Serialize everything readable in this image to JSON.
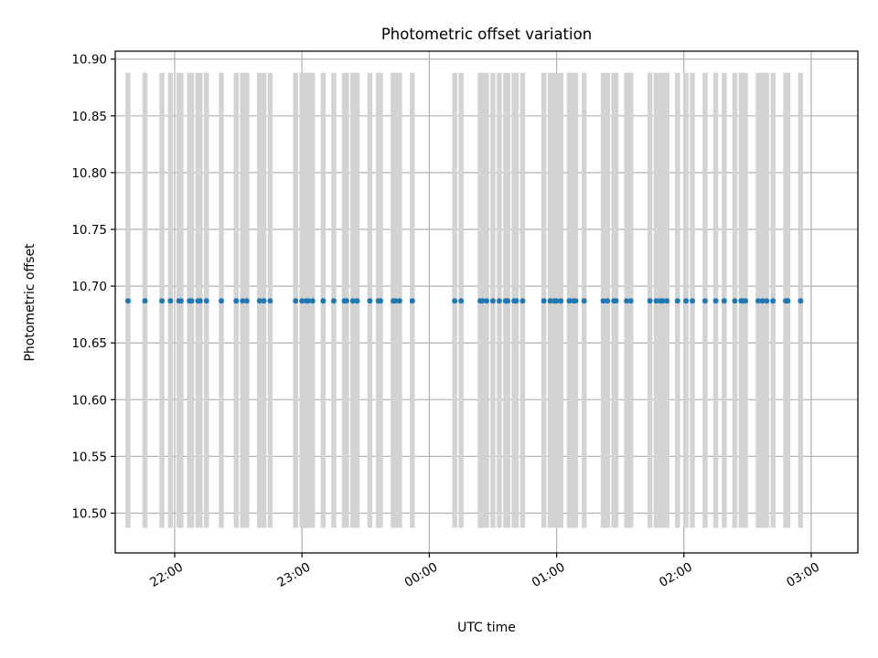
{
  "chart_data": {
    "type": "scatter",
    "title": "Photometric offset variation",
    "xlabel": "UTC time",
    "ylabel": "Photometric offset",
    "x_axis": {
      "type": "time",
      "start": "21:32",
      "end": "03:22",
      "ticks": [
        "22:00",
        "23:00",
        "00:00",
        "01:00",
        "02:00",
        "03:00"
      ]
    },
    "y_axis": {
      "range": [
        10.465,
        10.907
      ],
      "ticks": [
        "10.50",
        "10.55",
        "10.60",
        "10.65",
        "10.70",
        "10.75",
        "10.80",
        "10.85",
        "10.90"
      ]
    },
    "grid": true,
    "error_bar_color": "#d3d3d3",
    "point_color": "#1f77b4",
    "series": [
      {
        "error_low": 10.487,
        "error_high": 10.888,
        "points": [
          {
            "x": "21:38",
            "y": 10.687
          },
          {
            "x": "21:46",
            "y": 10.687
          },
          {
            "x": "21:54",
            "y": 10.687
          },
          {
            "x": "21:58",
            "y": 10.687
          },
          {
            "x": "22:02",
            "y": 10.687
          },
          {
            "x": "22:03",
            "y": 10.687
          },
          {
            "x": "22:07",
            "y": 10.687
          },
          {
            "x": "22:08",
            "y": 10.687
          },
          {
            "x": "22:11",
            "y": 10.687
          },
          {
            "x": "22:12",
            "y": 10.687
          },
          {
            "x": "22:15",
            "y": 10.687
          },
          {
            "x": "22:22",
            "y": 10.687
          },
          {
            "x": "22:29",
            "y": 10.687
          },
          {
            "x": "22:32",
            "y": 10.687
          },
          {
            "x": "22:34",
            "y": 10.687
          },
          {
            "x": "22:40",
            "y": 10.687
          },
          {
            "x": "22:42",
            "y": 10.687
          },
          {
            "x": "22:45",
            "y": 10.687
          },
          {
            "x": "22:57",
            "y": 10.687
          },
          {
            "x": "23:00",
            "y": 10.687
          },
          {
            "x": "23:02",
            "y": 10.687
          },
          {
            "x": "23:03",
            "y": 10.687
          },
          {
            "x": "23:05",
            "y": 10.687
          },
          {
            "x": "23:10",
            "y": 10.687
          },
          {
            "x": "23:15",
            "y": 10.687
          },
          {
            "x": "23:20",
            "y": 10.687
          },
          {
            "x": "23:21",
            "y": 10.687
          },
          {
            "x": "23:24",
            "y": 10.687
          },
          {
            "x": "23:26",
            "y": 10.687
          },
          {
            "x": "23:32",
            "y": 10.687
          },
          {
            "x": "23:36",
            "y": 10.687
          },
          {
            "x": "23:37",
            "y": 10.687
          },
          {
            "x": "23:43",
            "y": 10.687
          },
          {
            "x": "23:44",
            "y": 10.687
          },
          {
            "x": "23:46",
            "y": 10.687
          },
          {
            "x": "23:52",
            "y": 10.687
          },
          {
            "x": "00:12",
            "y": 10.687
          },
          {
            "x": "00:15",
            "y": 10.687
          },
          {
            "x": "00:24",
            "y": 10.687
          },
          {
            "x": "00:25",
            "y": 10.687
          },
          {
            "x": "00:27",
            "y": 10.687
          },
          {
            "x": "00:30",
            "y": 10.687
          },
          {
            "x": "00:33",
            "y": 10.687
          },
          {
            "x": "00:36",
            "y": 10.687
          },
          {
            "x": "00:37",
            "y": 10.687
          },
          {
            "x": "00:40",
            "y": 10.687
          },
          {
            "x": "00:41",
            "y": 10.687
          },
          {
            "x": "00:44",
            "y": 10.687
          },
          {
            "x": "00:54",
            "y": 10.687
          },
          {
            "x": "00:57",
            "y": 10.687
          },
          {
            "x": "00:59",
            "y": 10.687
          },
          {
            "x": "01:00",
            "y": 10.687
          },
          {
            "x": "01:02",
            "y": 10.687
          },
          {
            "x": "01:06",
            "y": 10.687
          },
          {
            "x": "01:08",
            "y": 10.687
          },
          {
            "x": "01:09",
            "y": 10.687
          },
          {
            "x": "01:13",
            "y": 10.687
          },
          {
            "x": "01:22",
            "y": 10.687
          },
          {
            "x": "01:24",
            "y": 10.687
          },
          {
            "x": "01:27",
            "y": 10.687
          },
          {
            "x": "01:28",
            "y": 10.687
          },
          {
            "x": "01:33",
            "y": 10.687
          },
          {
            "x": "01:35",
            "y": 10.687
          },
          {
            "x": "01:44",
            "y": 10.687
          },
          {
            "x": "01:47",
            "y": 10.687
          },
          {
            "x": "01:49",
            "y": 10.687
          },
          {
            "x": "01:50",
            "y": 10.687
          },
          {
            "x": "01:52",
            "y": 10.687
          },
          {
            "x": "01:57",
            "y": 10.687
          },
          {
            "x": "02:01",
            "y": 10.687
          },
          {
            "x": "02:04",
            "y": 10.687
          },
          {
            "x": "02:10",
            "y": 10.687
          },
          {
            "x": "02:15",
            "y": 10.687
          },
          {
            "x": "02:19",
            "y": 10.687
          },
          {
            "x": "02:24",
            "y": 10.687
          },
          {
            "x": "02:27",
            "y": 10.687
          },
          {
            "x": "02:28",
            "y": 10.687
          },
          {
            "x": "02:29",
            "y": 10.687
          },
          {
            "x": "02:35",
            "y": 10.687
          },
          {
            "x": "02:37",
            "y": 10.687
          },
          {
            "x": "02:39",
            "y": 10.687
          },
          {
            "x": "02:42",
            "y": 10.687
          },
          {
            "x": "02:48",
            "y": 10.687
          },
          {
            "x": "02:49",
            "y": 10.687
          },
          {
            "x": "02:55",
            "y": 10.687
          }
        ]
      }
    ]
  }
}
